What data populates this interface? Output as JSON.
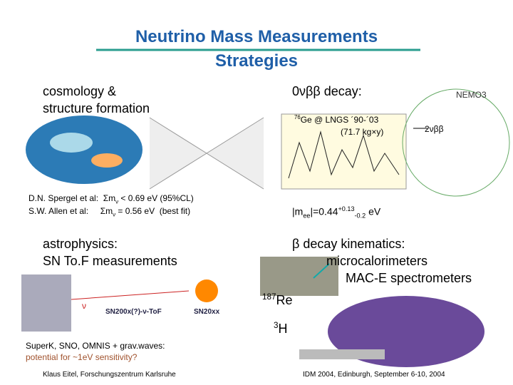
{
  "header": {
    "title_line1": "Neutrino Mass Measurements",
    "title_line2": "Strategies"
  },
  "cosmology": {
    "heading1": "cosmology &",
    "heading2": "structure formation",
    "ref1_author": "D.N. Spergel et al:",
    "ref1_pre": "Σm",
    "ref1_sub": "ν",
    "ref1_post": " < 0.69 eV (95%CL)",
    "ref2_author": "S.W. Allen et al:",
    "ref2_pre": "Σm",
    "ref2_sub": "ν",
    "ref2_post": " = 0.56 eV  (best fit)"
  },
  "double_beta": {
    "heading": "0νββ decay:",
    "nemo": "NEMO3",
    "ge_sup": "76",
    "ge_text": "Ge @ LNGS ´90-´03",
    "exposure": "(71.7 kg×y)",
    "two_nu": "2νββ",
    "mee_pre": "|m",
    "mee_sub": "ee",
    "mee_mid": "|=0.44",
    "mee_sup": "+0.13",
    "mee_sub2": "-0.2",
    "mee_unit": " eV"
  },
  "astrophysics": {
    "heading1": "astrophysics:",
    "heading2": "SN To.F measurements",
    "nu": "ν",
    "sn_label": "SN200x(?)-ν-ToF",
    "sn_future": "SN20xx",
    "note1": "SuperK, SNO, OMNIS + grav.waves:",
    "note2": "potential for ~1eV sensitivity?"
  },
  "beta_decay": {
    "heading": "β decay kinematics:",
    "method1": "microcalorimeters",
    "method2": "MAC-E spectrometers",
    "re_sup": "187",
    "re": "Re",
    "h_sup": "3",
    "h": "H"
  },
  "footer": {
    "left": "Klaus Eitel, Forschungszentrum Karlsruhe",
    "right": "IDM 2004, Edinburgh, September 6-10, 2004"
  }
}
